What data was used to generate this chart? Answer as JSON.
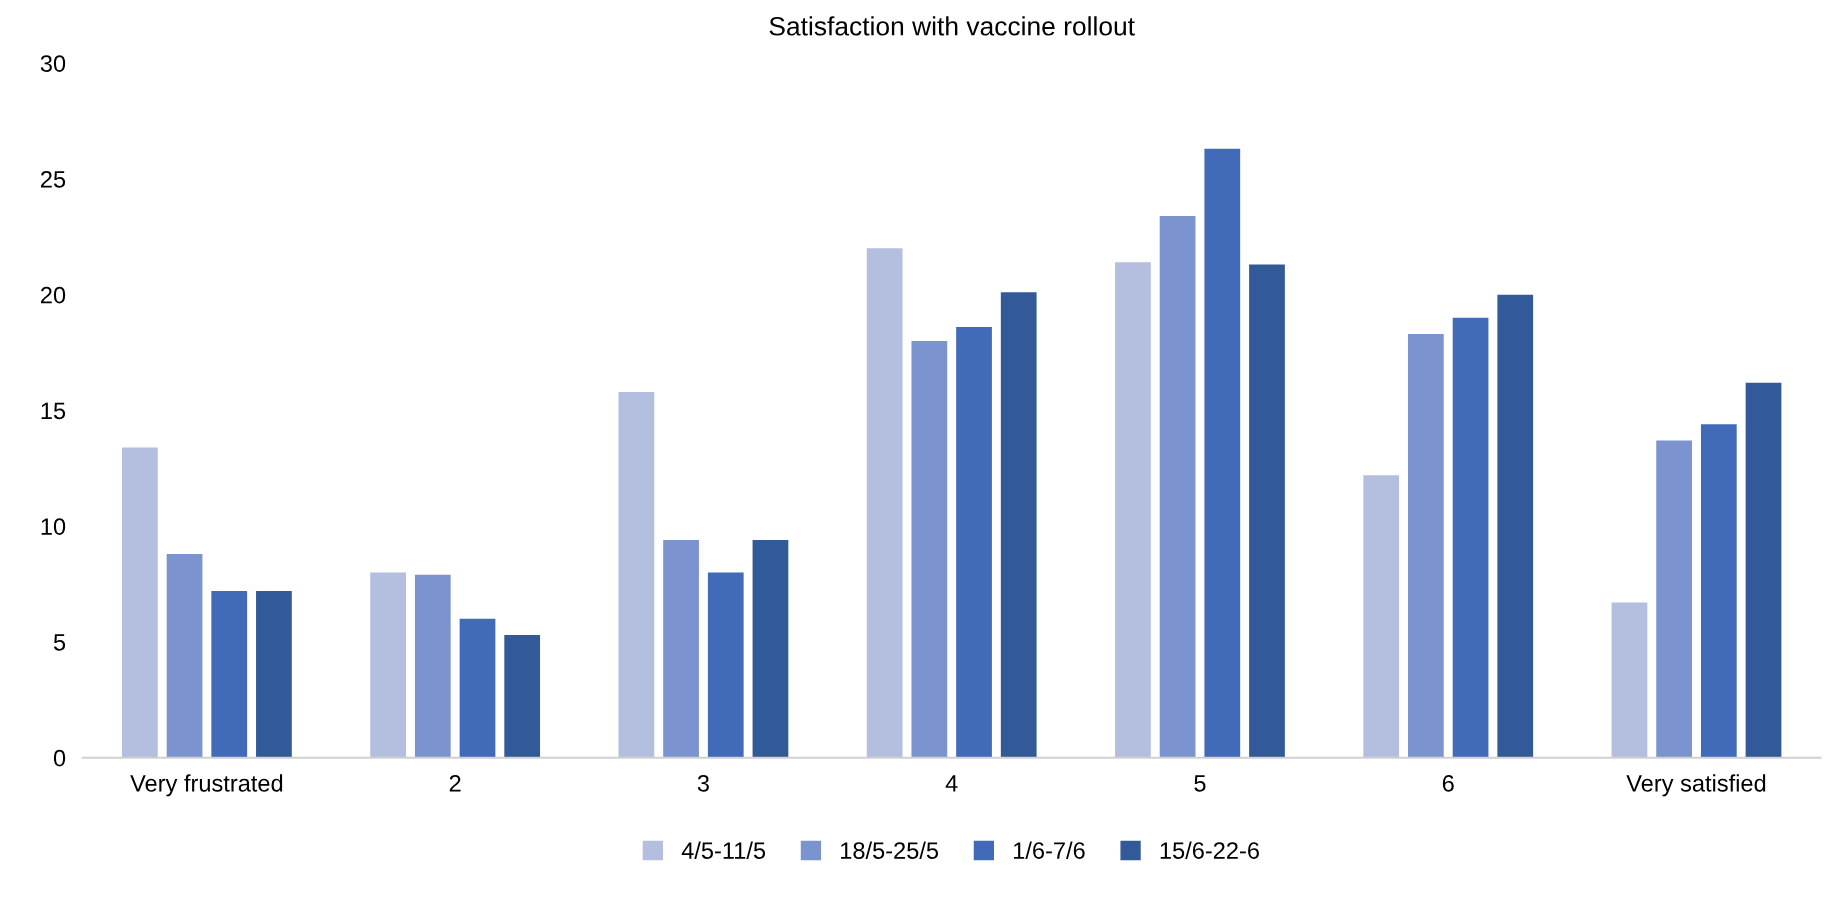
{
  "chart_data": {
    "type": "bar",
    "title": "Satisfaction with vaccine rollout",
    "categories": [
      "Very frustrated",
      "2",
      "3",
      "4",
      "5",
      "6",
      "Very satisfied"
    ],
    "series": [
      {
        "name": "4/5-11/5",
        "color": "#b4bedf",
        "values": [
          13.4,
          8.0,
          15.8,
          22.0,
          21.4,
          12.2,
          6.7
        ]
      },
      {
        "name": "18/5-25/5",
        "color": "#7b93cf",
        "values": [
          8.8,
          7.9,
          9.4,
          18.0,
          23.4,
          18.3,
          13.7
        ]
      },
      {
        "name": "1/6-7/6",
        "color": "#416bb9",
        "values": [
          7.2,
          6.0,
          8.0,
          18.6,
          26.3,
          19.0,
          14.4
        ]
      },
      {
        "name": "15/6-22-6",
        "color": "#325a99",
        "values": [
          7.2,
          5.3,
          9.4,
          20.1,
          21.3,
          20.0,
          16.2
        ]
      }
    ],
    "ylim": [
      0,
      30
    ],
    "yticks": [
      0,
      5,
      10,
      15,
      20,
      25,
      30
    ],
    "grid": false,
    "legend": "bottom"
  }
}
